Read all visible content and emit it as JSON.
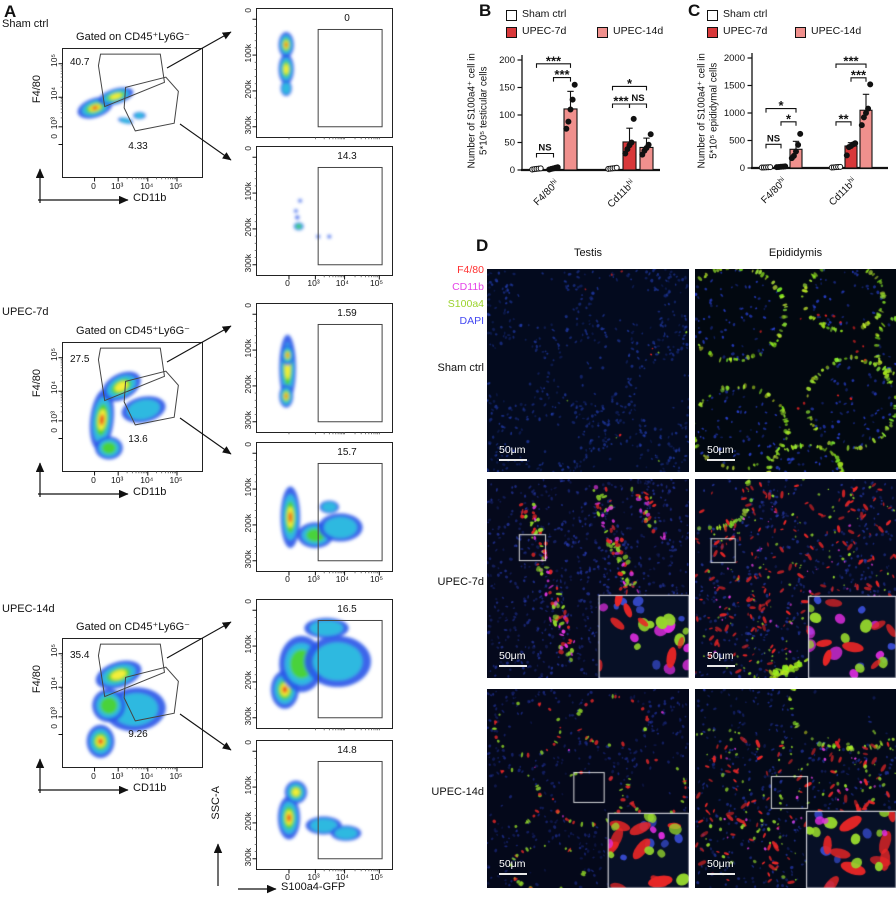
{
  "panels": {
    "A": {
      "label": "A",
      "axes": {
        "y_left": "F4/80",
        "x_left": "CD11b",
        "y_right": "SSC-A",
        "x_right": "S100a4-GFP",
        "log_ticks": [
          "0",
          "10³",
          "10⁴",
          "10⁵"
        ],
        "ssc_ticks": [
          "0",
          "100k",
          "200k",
          "300k"
        ]
      },
      "rows": [
        {
          "condition": "Sham ctrl",
          "gate_title": "Gated on CD45⁺Ly6G⁻",
          "f4_80_pct": "40.7",
          "cd11b_pct": "4.33",
          "gfp_top_pct": "0",
          "gfp_bottom_pct": "14.3"
        },
        {
          "condition": "UPEC-7d",
          "gate_title": "Gated on CD45⁺Ly6G⁻",
          "f4_80_pct": "27.5",
          "cd11b_pct": "13.6",
          "gfp_top_pct": "1.59",
          "gfp_bottom_pct": "15.7"
        },
        {
          "condition": "UPEC-14d",
          "gate_title": "Gated on CD45⁺Ly6G⁻",
          "f4_80_pct": "35.4",
          "cd11b_pct": "9.26",
          "gfp_top_pct": "16.5",
          "gfp_bottom_pct": "14.8"
        }
      ]
    },
    "B": {
      "label": "B",
      "legend": [
        "Sham ctrl",
        "UPEC-7d",
        "UPEC-14d"
      ],
      "ylabel_line1": "Number of S100a4⁺ cell in",
      "ylabel_line2": "5*10⁵ testicular cells"
    },
    "C": {
      "label": "C",
      "legend": [
        "Sham ctrl",
        "UPEC-7d",
        "UPEC-14d"
      ],
      "ylabel_line1": "Number of S100a4⁺ cell in",
      "ylabel_line2": "5*10⁵ epididymal cells"
    },
    "D": {
      "label": "D",
      "columns": [
        "Testis",
        "Epididymis"
      ],
      "row_labels": [
        "Sham ctrl",
        "UPEC-7d",
        "UPEC-14d"
      ],
      "stain_legend": [
        {
          "name": "F4/80",
          "color": "#ff2f2f"
        },
        {
          "name": "CD11b",
          "color": "#e544e8"
        },
        {
          "name": "S100a4",
          "color": "#9bd32b"
        },
        {
          "name": "DAPI",
          "color": "#4348f2"
        }
      ],
      "scale_bar": "50μm"
    }
  },
  "chart_data": [
    {
      "type": "bar",
      "panel": "B",
      "title": "",
      "ylabel": "Number of S100a4⁺ cell in 5*10⁵ testicular cells",
      "xlabel": "",
      "ylim": [
        0,
        200
      ],
      "yticks": [
        0,
        50,
        100,
        150,
        200
      ],
      "categories": [
        {
          "base": "F4/80",
          "sup": "hi"
        },
        {
          "base": "Cd11b",
          "sup": "hi"
        }
      ],
      "legend": [
        "Sham ctrl",
        "UPEC-7d",
        "UPEC-14d"
      ],
      "colors": [
        "#ffffff",
        "#d8383a",
        "#f0908d"
      ],
      "series": [
        {
          "name": "Sham ctrl",
          "values": [
            2,
            3
          ],
          "sd": [
            1,
            2
          ],
          "points": [
            [
              1,
              1.5,
              2,
              2.5,
              3
            ],
            [
              2,
              2.5,
              3,
              3.5,
              4
            ]
          ]
        },
        {
          "name": "UPEC-7d",
          "values": [
            3,
            51
          ],
          "sd": [
            2,
            25
          ],
          "points": [
            [
              1,
              2,
              3,
              4,
              5
            ],
            [
              30,
              38,
              45,
              50,
              93
            ]
          ]
        },
        {
          "name": "UPEC-14d",
          "values": [
            111,
            41
          ],
          "sd": [
            32,
            17
          ],
          "points": [
            [
              75,
              88,
              110,
              128,
              155
            ],
            [
              28,
              35,
              40,
              46,
              65
            ]
          ]
        }
      ],
      "significance": [
        {
          "group": 0,
          "from": 0,
          "to": 1,
          "label": "NS",
          "y": 30
        },
        {
          "group": 0,
          "from": 1,
          "to": 2,
          "label": "***",
          "y": 168
        },
        {
          "group": 0,
          "from": 0,
          "to": 2,
          "label": "***",
          "y": 193
        },
        {
          "group": 1,
          "from": 0,
          "to": 1,
          "label": "***",
          "y": 120
        },
        {
          "group": 1,
          "from": 1,
          "to": 2,
          "label": "NS",
          "y": 120
        },
        {
          "group": 1,
          "from": 0,
          "to": 2,
          "label": "*",
          "y": 152
        }
      ]
    },
    {
      "type": "bar",
      "panel": "C",
      "title": "",
      "ylabel": "Number of S100a4⁺ cell in 5*10⁵ epididymal cells",
      "xlabel": "",
      "ylim": [
        0,
        2000
      ],
      "yticks": [
        0,
        500,
        1000,
        1500,
        2000
      ],
      "categories": [
        {
          "base": "F4/80",
          "sup": "hi"
        },
        {
          "base": "Cd11b",
          "sup": "hi"
        }
      ],
      "legend": [
        "Sham ctrl",
        "UPEC-7d",
        "UPEC-14d"
      ],
      "colors": [
        "#ffffff",
        "#d8383a",
        "#f0908d"
      ],
      "series": [
        {
          "name": "Sham ctrl",
          "values": [
            15,
            15
          ],
          "sd": [
            5,
            5
          ],
          "points": [
            [
              8,
              10,
              12,
              14,
              16
            ],
            [
              8,
              12,
              15,
              18,
              20
            ]
          ]
        },
        {
          "name": "UPEC-7d",
          "values": [
            20,
            400
          ],
          "sd": [
            8,
            60
          ],
          "points": [
            [
              15,
              18,
              22,
              26,
              30
            ],
            [
              230,
              380,
              400,
              430,
              450
            ]
          ]
        },
        {
          "name": "UPEC-14d",
          "values": [
            340,
            1050
          ],
          "sd": [
            145,
            290
          ],
          "points": [
            [
              180,
              220,
              300,
              420,
              620
            ],
            [
              780,
              920,
              1000,
              1080,
              1520
            ]
          ]
        }
      ],
      "significance": [
        {
          "group": 0,
          "from": 0,
          "to": 1,
          "label": "NS",
          "y": 430
        },
        {
          "group": 0,
          "from": 1,
          "to": 2,
          "label": "*",
          "y": 840
        },
        {
          "group": 0,
          "from": 0,
          "to": 2,
          "label": "*",
          "y": 1080
        },
        {
          "group": 1,
          "from": 0,
          "to": 1,
          "label": "**",
          "y": 840
        },
        {
          "group": 1,
          "from": 1,
          "to": 2,
          "label": "***",
          "y": 1640
        },
        {
          "group": 1,
          "from": 0,
          "to": 2,
          "label": "***",
          "y": 1890
        }
      ]
    }
  ]
}
